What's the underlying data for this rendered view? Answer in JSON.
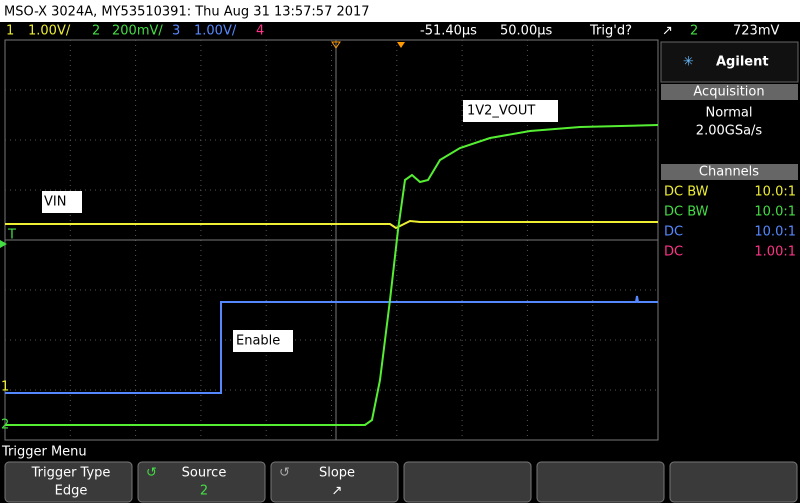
{
  "header": {
    "title": "MSO-X 3024A, MY53510391: Thu Aug 31 13:57:57 2017"
  },
  "status": {
    "channels": [
      {
        "num": "1",
        "scale": "1.00V/"
      },
      {
        "num": "2",
        "scale": "200mV/"
      },
      {
        "num": "3",
        "scale": "1.00V/"
      },
      {
        "num": "4"
      }
    ],
    "delay": "-51.40µs",
    "timebase": "50.00µs",
    "trigger_state": "Trig'd?",
    "trigger_slope": "↗",
    "trigger_source": "2",
    "trigger_level": "723mV"
  },
  "panel": {
    "brand": "Agilent",
    "acquisition": {
      "heading": "Acquisition",
      "mode": "Normal",
      "rate": "2.00GSa/s"
    },
    "channels": {
      "heading": "Channels",
      "rows": [
        {
          "coupling": "DC BW",
          "probe": "10.0:1"
        },
        {
          "coupling": "DC BW",
          "probe": "10.0:1"
        },
        {
          "coupling": "DC",
          "probe": "10.0:1"
        },
        {
          "coupling": "DC",
          "probe": "1.00:1"
        }
      ]
    }
  },
  "annotations": [
    "1V2_VOUT",
    "VIN",
    "Enable"
  ],
  "markers": {
    "trigger": "T",
    "ch1": "1",
    "ch2": "2"
  },
  "softkeys": {
    "menu": "Trigger Menu",
    "keys": [
      {
        "label": "Trigger Type",
        "value": "Edge"
      },
      {
        "label": "Source",
        "value": "2"
      },
      {
        "label": "Slope",
        "value": "↗"
      }
    ]
  }
}
